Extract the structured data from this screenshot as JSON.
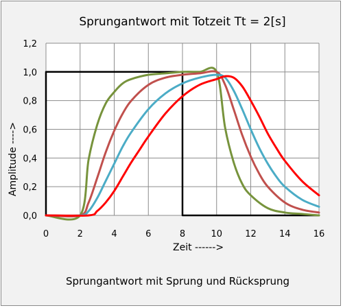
{
  "chart_data": {
    "type": "line",
    "title": "Sprungantwort mit Totzeit  Tt = 2[s]",
    "xlabel": "Zeit  ------>",
    "ylabel": "Amplitude  ---->",
    "caption": "Sprungantwort mit Sprung und Rücksprung",
    "xlim": [
      0,
      16
    ],
    "ylim": [
      0,
      1.2
    ],
    "xticks": [
      0,
      2,
      4,
      6,
      8,
      10,
      12,
      14,
      16
    ],
    "yticks": [
      0,
      0.2,
      0.4,
      0.6,
      0.8,
      1.0,
      1.2
    ],
    "xtick_labels": [
      "0",
      "2",
      "4",
      "6",
      "8",
      "10",
      "12",
      "14",
      "16"
    ],
    "ytick_labels": [
      "0,0",
      "0,2",
      "0,4",
      "0,6",
      "0,8",
      "1,0",
      "1,2"
    ],
    "grid": true,
    "series": [
      {
        "color": "#000000",
        "x": [
          0,
          0,
          8,
          8,
          16
        ],
        "y": [
          0,
          1.0,
          1.0,
          0,
          0
        ]
      },
      {
        "color": "#77933c",
        "x": [
          0,
          2,
          2.5,
          3,
          3.5,
          4,
          4.5,
          5,
          6,
          7,
          8,
          9,
          10,
          10.5,
          11,
          11.5,
          12,
          13,
          14,
          15,
          16
        ],
        "y": [
          0,
          0,
          0.39,
          0.63,
          0.78,
          0.86,
          0.92,
          0.95,
          0.98,
          0.99,
          1.0,
          1.0,
          1.0,
          0.61,
          0.37,
          0.22,
          0.14,
          0.05,
          0.02,
          0.01,
          0.0
        ]
      },
      {
        "color": "#c0504d",
        "x": [
          0,
          2,
          2.5,
          3,
          3.5,
          4,
          4.5,
          5,
          6,
          7,
          8,
          9,
          10,
          10.5,
          11,
          11.5,
          12,
          12.5,
          13,
          14,
          15,
          16
        ],
        "y": [
          0,
          0,
          0.09,
          0.26,
          0.44,
          0.59,
          0.71,
          0.8,
          0.91,
          0.96,
          0.98,
          0.99,
          1.0,
          0.91,
          0.74,
          0.56,
          0.41,
          0.29,
          0.2,
          0.09,
          0.04,
          0.02
        ]
      },
      {
        "color": "#4bacc6",
        "x": [
          0,
          2,
          2.5,
          3,
          3.5,
          4,
          4.5,
          5,
          6,
          7,
          8,
          9,
          10,
          10.5,
          11,
          11.5,
          12,
          12.5,
          13,
          13.5,
          14,
          15,
          16
        ],
        "y": [
          0,
          0,
          0.03,
          0.12,
          0.24,
          0.36,
          0.48,
          0.58,
          0.74,
          0.85,
          0.92,
          0.96,
          0.98,
          0.96,
          0.87,
          0.74,
          0.6,
          0.47,
          0.36,
          0.27,
          0.2,
          0.11,
          0.06
        ]
      },
      {
        "color": "#ff0000",
        "x": [
          0,
          2.5,
          3,
          3.5,
          4,
          4.5,
          5,
          5.5,
          6,
          7,
          8,
          9,
          10,
          10.5,
          11,
          11.5,
          12,
          12.5,
          13,
          13.5,
          14,
          15,
          16
        ],
        "y": [
          0,
          0,
          0.03,
          0.09,
          0.17,
          0.27,
          0.37,
          0.46,
          0.55,
          0.71,
          0.83,
          0.91,
          0.95,
          0.97,
          0.96,
          0.9,
          0.8,
          0.69,
          0.57,
          0.47,
          0.38,
          0.24,
          0.14
        ]
      }
    ]
  }
}
